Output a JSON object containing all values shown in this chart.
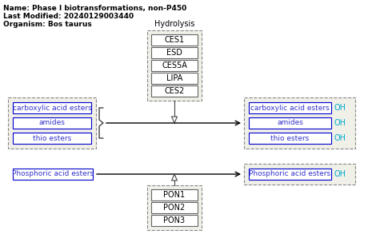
{
  "title_lines": [
    "Name: Phase I biotransformations, non-P450",
    "Last Modified: 20240129003440",
    "Organism: Bos taurus"
  ],
  "hydrolysis_label": "Hydrolysis",
  "ces_enzymes": [
    "CES1",
    "ESD",
    "CES5A",
    "LIPA",
    "CES2"
  ],
  "pon_enzymes": [
    "PON1",
    "PON2",
    "PON3"
  ],
  "left_substrates": [
    "carboxylic acid esters",
    "amides",
    "thio esters"
  ],
  "right_products": [
    "carboxylic acid esters",
    "amides",
    "thio esters"
  ],
  "right_oh_labels": [
    "OH",
    "OH",
    "OH"
  ],
  "phosphoric_substrate": "Phosphoric acid esters",
  "phosphoric_product": "Phosphoric acid esters",
  "phosphoric_oh": "OH",
  "box_border_color": "#0000cc",
  "dashed_border_color": "#aaaaaa",
  "text_color_blue": "#3333cc",
  "text_color_cyan": "#00aacc",
  "text_color_black": "#000000",
  "arrow_color": "#000000",
  "enzyme_box_bg": "#ffffff",
  "substrate_box_bg": "#ffffff",
  "group_box_bg": "#f0efe8",
  "ces_group_bg": "#f0efe8"
}
